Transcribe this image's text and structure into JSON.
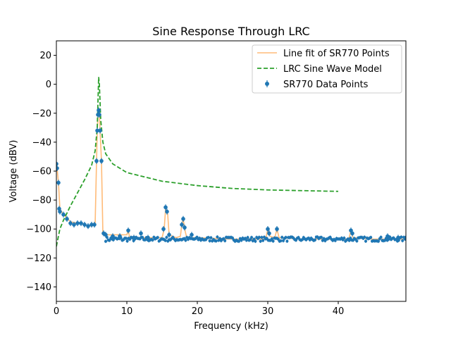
{
  "chart_data": {
    "type": "line",
    "title": "Sine Response Through LRC",
    "xlabel": "Frequency (kHz)",
    "ylabel": "Voltage (dBV)",
    "xlim": [
      0,
      49.6
    ],
    "ylim": [
      -150,
      30
    ],
    "xticks": [
      0,
      10,
      20,
      30,
      40
    ],
    "yticks": [
      20,
      0,
      -20,
      -40,
      -60,
      -80,
      -100,
      -120,
      -140
    ],
    "grid": false,
    "legend_position": "top-right",
    "colors": {
      "fit": "#ffbb78",
      "model": "#2ca02c",
      "data": "#1f77b4"
    },
    "series": [
      {
        "name": "Line fit of SR770 Points",
        "style": "solid-line",
        "points": [
          [
            0,
            -55
          ],
          [
            0.1,
            -58
          ],
          [
            0.3,
            -68
          ],
          [
            0.5,
            -86
          ],
          [
            1,
            -90
          ],
          [
            2,
            -95
          ],
          [
            3,
            -96
          ],
          [
            4,
            -97
          ],
          [
            5,
            -98
          ],
          [
            5.5,
            -97
          ],
          [
            5.7,
            -53
          ],
          [
            5.8,
            -32
          ],
          [
            5.9,
            -22
          ],
          [
            6.0,
            -18
          ],
          [
            6.1,
            -20
          ],
          [
            6.2,
            -32
          ],
          [
            6.4,
            -53
          ],
          [
            6.6,
            -103
          ],
          [
            7,
            -104
          ],
          [
            10,
            -104
          ],
          [
            10.2,
            -101
          ],
          [
            10.4,
            -106
          ],
          [
            12,
            -106
          ],
          [
            14,
            -106
          ],
          [
            15,
            -106
          ],
          [
            15.3,
            -100
          ],
          [
            15.5,
            -86
          ],
          [
            15.8,
            -90
          ],
          [
            16,
            -104
          ],
          [
            17,
            -106
          ],
          [
            17.6,
            -105
          ],
          [
            17.8,
            -97
          ],
          [
            18.0,
            -93
          ],
          [
            18.2,
            -100
          ],
          [
            18.5,
            -106
          ],
          [
            20,
            -106
          ],
          [
            25,
            -107
          ],
          [
            29.7,
            -107
          ],
          [
            30,
            -100
          ],
          [
            30.3,
            -105
          ],
          [
            31,
            -106
          ],
          [
            31.3,
            -100
          ],
          [
            31.6,
            -106
          ],
          [
            35,
            -107
          ],
          [
            41.5,
            -107
          ],
          [
            41.8,
            -101
          ],
          [
            42.1,
            -106
          ],
          [
            45,
            -107
          ],
          [
            49.6,
            -107
          ]
        ]
      },
      {
        "name": "LRC Sine Wave Model",
        "style": "dashed-line",
        "points": [
          [
            0,
            -112
          ],
          [
            0.5,
            -100
          ],
          [
            1,
            -94
          ],
          [
            2,
            -84
          ],
          [
            3,
            -75
          ],
          [
            4,
            -66
          ],
          [
            5,
            -56
          ],
          [
            5.5,
            -46
          ],
          [
            5.8,
            -30
          ],
          [
            6.0,
            5
          ],
          [
            6.1,
            0
          ],
          [
            6.3,
            -25
          ],
          [
            6.6,
            -40
          ],
          [
            7,
            -48
          ],
          [
            8,
            -55
          ],
          [
            10,
            -61
          ],
          [
            15,
            -67
          ],
          [
            20,
            -70
          ],
          [
            25,
            -72
          ],
          [
            30,
            -73
          ],
          [
            35,
            -73.5
          ],
          [
            40,
            -74
          ]
        ]
      },
      {
        "name": "SR770 Data Points",
        "style": "markers",
        "baseline": -107,
        "points": [
          [
            0,
            -55
          ],
          [
            0.1,
            -58
          ],
          [
            0.3,
            -68
          ],
          [
            0.4,
            -86
          ],
          [
            0.5,
            -88
          ],
          [
            1,
            -90
          ],
          [
            1.5,
            -93
          ],
          [
            2,
            -96
          ],
          [
            2.5,
            -97
          ],
          [
            3,
            -96
          ],
          [
            3.5,
            -96
          ],
          [
            4,
            -97
          ],
          [
            4.5,
            -98
          ],
          [
            5,
            -97
          ],
          [
            5.4,
            -97
          ],
          [
            5.7,
            -53
          ],
          [
            5.8,
            -32
          ],
          [
            5.9,
            -21
          ],
          [
            6.0,
            -18
          ],
          [
            6.1,
            -21
          ],
          [
            6.2,
            -32
          ],
          [
            6.4,
            -53
          ],
          [
            6.7,
            -103
          ],
          [
            7,
            -104
          ],
          [
            8,
            -105
          ],
          [
            9,
            -105
          ],
          [
            10.2,
            -101
          ],
          [
            11,
            -106
          ],
          [
            12,
            -103
          ],
          [
            13,
            -106
          ],
          [
            15.2,
            -100
          ],
          [
            15.5,
            -85
          ],
          [
            15.7,
            -88
          ],
          [
            16,
            -104
          ],
          [
            17.8,
            -97
          ],
          [
            18.0,
            -93
          ],
          [
            18.2,
            -99
          ],
          [
            19.2,
            -104
          ],
          [
            30.0,
            -100
          ],
          [
            30.2,
            -103
          ],
          [
            31.3,
            -100
          ],
          [
            41.8,
            -101
          ],
          [
            42.0,
            -103
          ],
          [
            47,
            -105
          ],
          [
            48.5,
            -106
          ],
          [
            49.6,
            -106
          ]
        ]
      }
    ]
  }
}
